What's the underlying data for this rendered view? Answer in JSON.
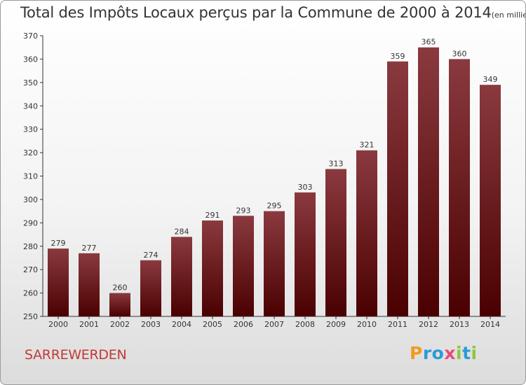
{
  "title": "Total des Impôts Locaux perçus par la Commune de 2000 à 2014",
  "unit_label": "(en milliers d'€)",
  "commune": "SARREWERDEN",
  "brand": {
    "letters": [
      "P",
      "r",
      "o",
      "x",
      "i",
      "t",
      "i"
    ],
    "colors": [
      "#f29a1f",
      "#2c9bd7",
      "#2c9bd7",
      "#e94a7a",
      "#8dc63f",
      "#2c9bd7",
      "#8dc63f"
    ]
  },
  "colors": {
    "bar_dark": "#4a0000",
    "bar_light": "#8a3a3f",
    "grid": "#333333"
  },
  "chart_data": {
    "type": "bar",
    "title": "Total des Impôts Locaux perçus par la Commune de 2000 à 2014",
    "xlabel": "",
    "ylabel": "en milliers d'€",
    "categories": [
      "2000",
      "2001",
      "2002",
      "2003",
      "2004",
      "2005",
      "2006",
      "2007",
      "2008",
      "2009",
      "2010",
      "2011",
      "2012",
      "2013",
      "2014"
    ],
    "values": [
      279,
      277,
      260,
      274,
      284,
      291,
      293,
      295,
      303,
      313,
      321,
      359,
      365,
      360,
      349
    ],
    "ylim": [
      250,
      370
    ],
    "yticks": [
      250,
      260,
      270,
      280,
      290,
      300,
      310,
      320,
      330,
      340,
      350,
      360,
      370
    ],
    "grid": false,
    "data_labels": true
  }
}
